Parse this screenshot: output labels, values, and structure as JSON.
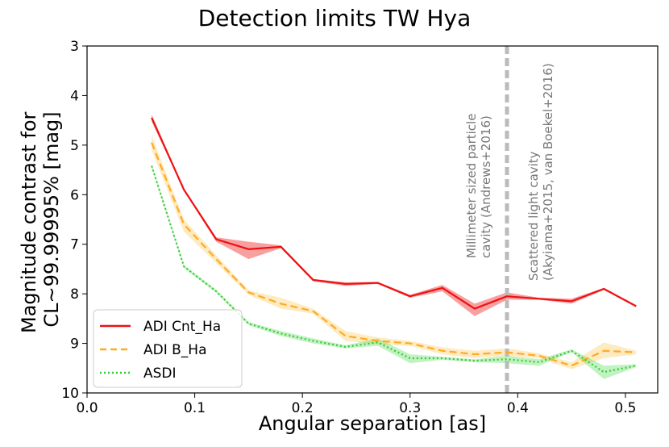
{
  "chart_data": {
    "type": "line",
    "title": "Detection limits TW Hya",
    "xlabel": "Angular separation [as]",
    "ylabel": [
      "Magnitude contrast for",
      "CL~99.99995% [mag]"
    ],
    "xlim": [
      0.0,
      0.53
    ],
    "ylim": [
      10,
      3
    ],
    "y_inverted": true,
    "xticks": [
      0.0,
      0.1,
      0.2,
      0.3,
      0.4,
      0.5
    ],
    "xtick_labels": [
      "0.0",
      "0.1",
      "0.2",
      "0.3",
      "0.4",
      "0.5"
    ],
    "yticks": [
      3,
      4,
      5,
      6,
      7,
      8,
      9,
      10
    ],
    "ytick_labels": [
      "3",
      "4",
      "5",
      "6",
      "7",
      "8",
      "9",
      "10"
    ],
    "grid": false,
    "legend_position": "lower-left",
    "x": [
      0.06,
      0.09,
      0.12,
      0.15,
      0.18,
      0.21,
      0.24,
      0.27,
      0.3,
      0.33,
      0.36,
      0.39,
      0.42,
      0.45,
      0.48,
      0.51
    ],
    "series": [
      {
        "name": "ADI Cnt_Ha",
        "color": "#ee1111",
        "style": "solid",
        "values": [
          4.45,
          5.9,
          6.9,
          7.1,
          7.05,
          7.72,
          7.8,
          7.78,
          8.05,
          7.88,
          8.3,
          8.05,
          8.1,
          8.15,
          7.9,
          8.25
        ],
        "lower": [
          4.38,
          5.88,
          6.86,
          6.95,
          7.02,
          7.7,
          7.77,
          7.76,
          8.02,
          7.82,
          8.2,
          7.97,
          8.08,
          8.1,
          7.88,
          8.23
        ],
        "upper": [
          4.52,
          5.92,
          6.95,
          7.3,
          7.08,
          7.75,
          7.84,
          7.8,
          8.08,
          7.95,
          8.45,
          8.12,
          8.12,
          8.2,
          7.92,
          8.27
        ]
      },
      {
        "name": "ADI B_Ha",
        "color": "#ffaa22",
        "band_color": "#ffcc66",
        "style": "dashed",
        "values": [
          4.95,
          6.6,
          7.3,
          7.97,
          8.2,
          8.35,
          8.85,
          8.95,
          9.0,
          9.15,
          9.22,
          9.18,
          9.25,
          9.45,
          9.15,
          9.18
        ],
        "lower": [
          4.8,
          6.5,
          7.22,
          7.93,
          8.08,
          8.3,
          8.75,
          8.88,
          8.95,
          9.08,
          9.15,
          9.1,
          9.2,
          9.38,
          8.98,
          9.15
        ],
        "upper": [
          5.1,
          6.75,
          7.38,
          8.02,
          8.3,
          8.4,
          8.95,
          9.02,
          9.05,
          9.22,
          9.3,
          9.25,
          9.3,
          9.52,
          9.3,
          9.22
        ]
      },
      {
        "name": "ASDI",
        "color": "#33cc33",
        "band_color": "#66dd66",
        "style": "dotted",
        "values": [
          5.42,
          7.45,
          7.95,
          8.6,
          8.8,
          8.95,
          9.07,
          8.98,
          9.3,
          9.3,
          9.35,
          9.32,
          9.38,
          9.15,
          9.58,
          9.45
        ],
        "lower": [
          5.38,
          7.42,
          7.92,
          8.57,
          8.75,
          8.9,
          9.04,
          8.9,
          9.22,
          9.27,
          9.32,
          9.25,
          9.32,
          9.12,
          9.45,
          9.42
        ],
        "upper": [
          5.46,
          7.48,
          7.98,
          8.63,
          8.85,
          9.0,
          9.1,
          9.05,
          9.4,
          9.33,
          9.38,
          9.4,
          9.45,
          9.18,
          9.72,
          9.48
        ]
      }
    ],
    "vline": {
      "x": 0.39,
      "color": "#bbbbbb",
      "style": "dashed"
    },
    "annotations": [
      {
        "lines": [
          "Millimeter sized particle",
          "cavity (Andrews+2016)"
        ],
        "color": "#777777"
      },
      {
        "lines": [
          "Scattered light cavity",
          "(Akyiama+2015, van Boekel+2016)"
        ],
        "color": "#777777"
      }
    ]
  }
}
